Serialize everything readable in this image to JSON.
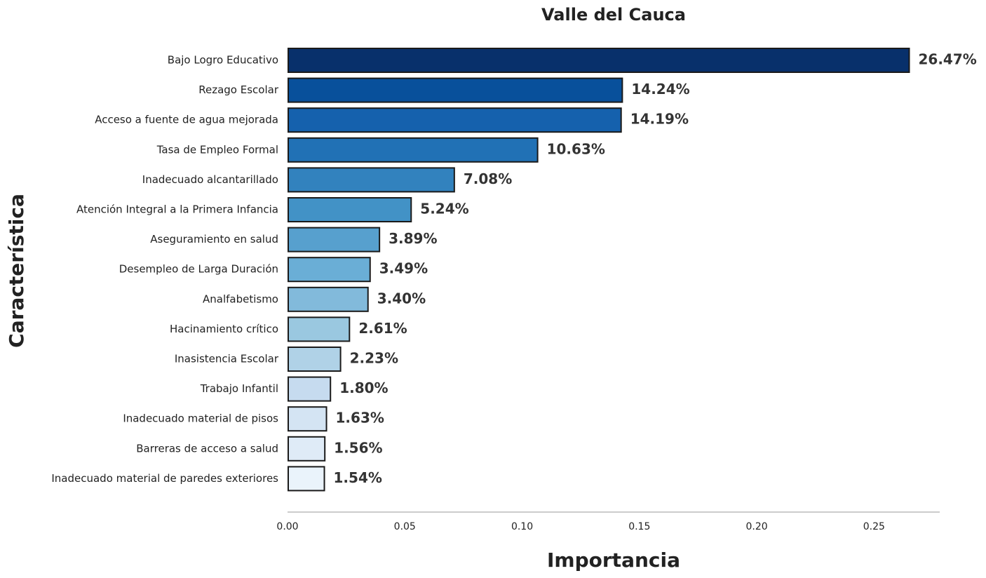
{
  "chart_data": {
    "type": "bar",
    "orientation": "horizontal",
    "title": "Valle del Cauca",
    "xlabel": "Importancia",
    "ylabel": "Característica",
    "xlim": [
      0,
      0.278
    ],
    "xticks": [
      "0.00",
      "0.05",
      "0.10",
      "0.15",
      "0.20",
      "0.25"
    ],
    "grid": false,
    "categories": [
      "Bajo Logro Educativo",
      "Rezago Escolar",
      "Acceso a fuente de agua mejorada",
      "Tasa de Empleo Formal",
      "Inadecuado alcantarillado",
      "Atención Integral a la Primera Infancia",
      "Aseguramiento en salud",
      "Desempleo de Larga Duración",
      "Analfabetismo",
      "Hacinamiento crítico",
      "Inasistencia Escolar",
      "Trabajo Infantil",
      "Inadecuado material de pisos",
      "Barreras de acceso a salud",
      "Inadecuado material de paredes exteriores"
    ],
    "values": [
      0.2647,
      0.1424,
      0.1419,
      0.1063,
      0.0708,
      0.0524,
      0.0389,
      0.0349,
      0.034,
      0.0261,
      0.0223,
      0.018,
      0.0163,
      0.0156,
      0.0154
    ],
    "data_labels": [
      "26.47%",
      "14.24%",
      "14.19%",
      "10.63%",
      "7.08%",
      "5.24%",
      "3.89%",
      "3.49%",
      "3.40%",
      "2.61%",
      "2.23%",
      "1.80%",
      "1.63%",
      "1.56%",
      "1.54%"
    ],
    "colors": [
      "#08306b",
      "#08509b",
      "#1561ad",
      "#2171b5",
      "#3282be",
      "#4292c6",
      "#57a0ce",
      "#6aaed6",
      "#82badb",
      "#9ac8e0",
      "#b0d2e7",
      "#c6dbef",
      "#d4e4f3",
      "#dfebf7",
      "#eaf3fb"
    ]
  }
}
